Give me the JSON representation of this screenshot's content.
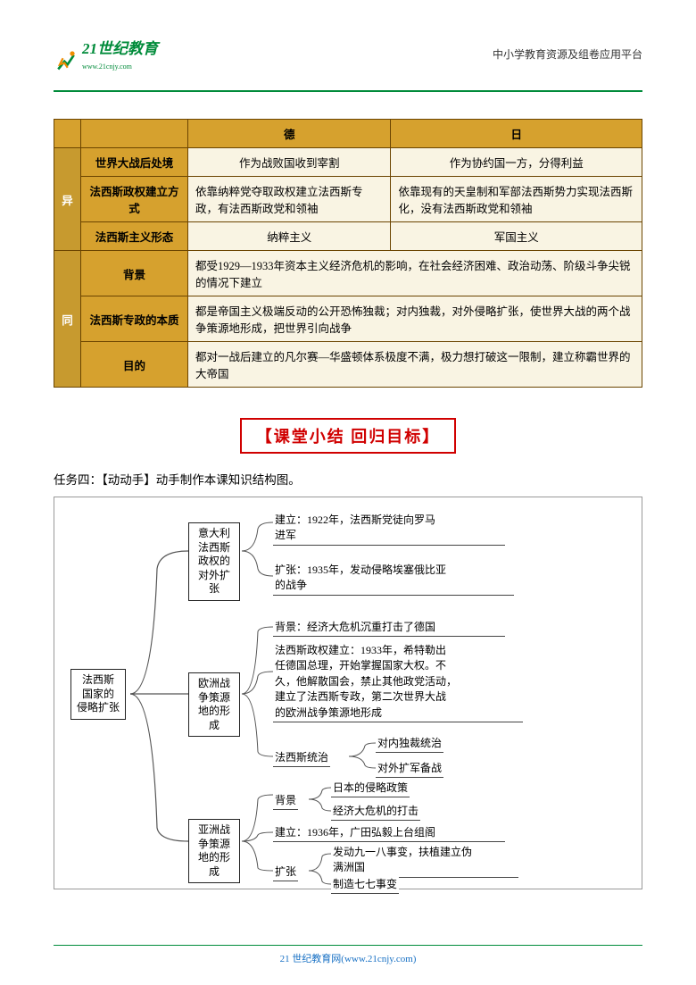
{
  "header": {
    "logo_main": "21世纪教育",
    "logo_sub": "www.21cnjy.com",
    "right_text": "中小学教育资源及组卷应用平台"
  },
  "table": {
    "col_de": "德",
    "col_jp": "日",
    "side_diff": "异",
    "side_same": "同",
    "rows_diff": [
      {
        "h": "世界大战后处境",
        "de": "作为战败国收到宰割",
        "jp": "作为协约国一方，分得利益"
      },
      {
        "h": "法西斯政权建立方式",
        "de": "依靠纳粹党夺取政权建立法西斯专政，有法西斯政党和领袖",
        "jp": "依靠现有的天皇制和军部法西斯势力实现法西斯化，没有法西斯政党和领袖"
      },
      {
        "h": "法西斯主义形态",
        "de": "纳粹主义",
        "jp": "军国主义"
      }
    ],
    "rows_same": [
      {
        "h": "背景",
        "t": "都受1929—1933年资本主义经济危机的影响，在社会经济困难、政治动荡、阶级斗争尖锐的情况下建立"
      },
      {
        "h": "法西斯专政的本质",
        "t": "都是帝国主义极端反动的公开恐怖独裁；对内独裁，对外侵略扩张，使世界大战的两个战争策源地形成，把世界引向战争"
      },
      {
        "h": "目的",
        "t": "都对一战后建立的凡尔赛—华盛顿体系极度不满，极力想打破这一限制，建立称霸世界的大帝国"
      }
    ]
  },
  "banner": "【课堂小结  回归目标】",
  "task4": "任务四：【动动手】动手制作本课知识结构图。",
  "mind": {
    "root": "法西斯\n国家的\n侵略扩张",
    "b1": {
      "title": "意大利\n法西斯\n政权的\n对外扩张",
      "l1": "建立：1922年，法西斯党徒向罗马\n进军",
      "l2": "扩张：1935年，发动侵略埃塞俄比亚\n的战争"
    },
    "b2": {
      "title": "欧洲战\n争策源\n地的形成",
      "l1": "背景：经济大危机沉重打击了德国",
      "l2": "法西斯政权建立：1933年，希特勒出\n任德国总理，开始掌握国家大权。不\n久，他解散国会，禁止其他政党活动，\n建立了法西斯专政，第二次世界大战\n的欧洲战争策源地形成",
      "l3a": "法西斯统治",
      "l3b1": "对内独裁统治",
      "l3b2": "对外扩军备战"
    },
    "b3": {
      "title": "亚洲战\n争策源\n地的形成",
      "l1a": "背景",
      "l1b1": "日本的侵略政策",
      "l1b2": "经济大危机的打击",
      "l2": "建立：1936年，广田弘毅上台组阁",
      "l3a": "扩张",
      "l3b1": "发动九一八事变，扶植建立伪\n满洲国",
      "l3b2": "制造七七事变"
    }
  },
  "footer": "21 世纪教育网(www.21cnjy.com)"
}
